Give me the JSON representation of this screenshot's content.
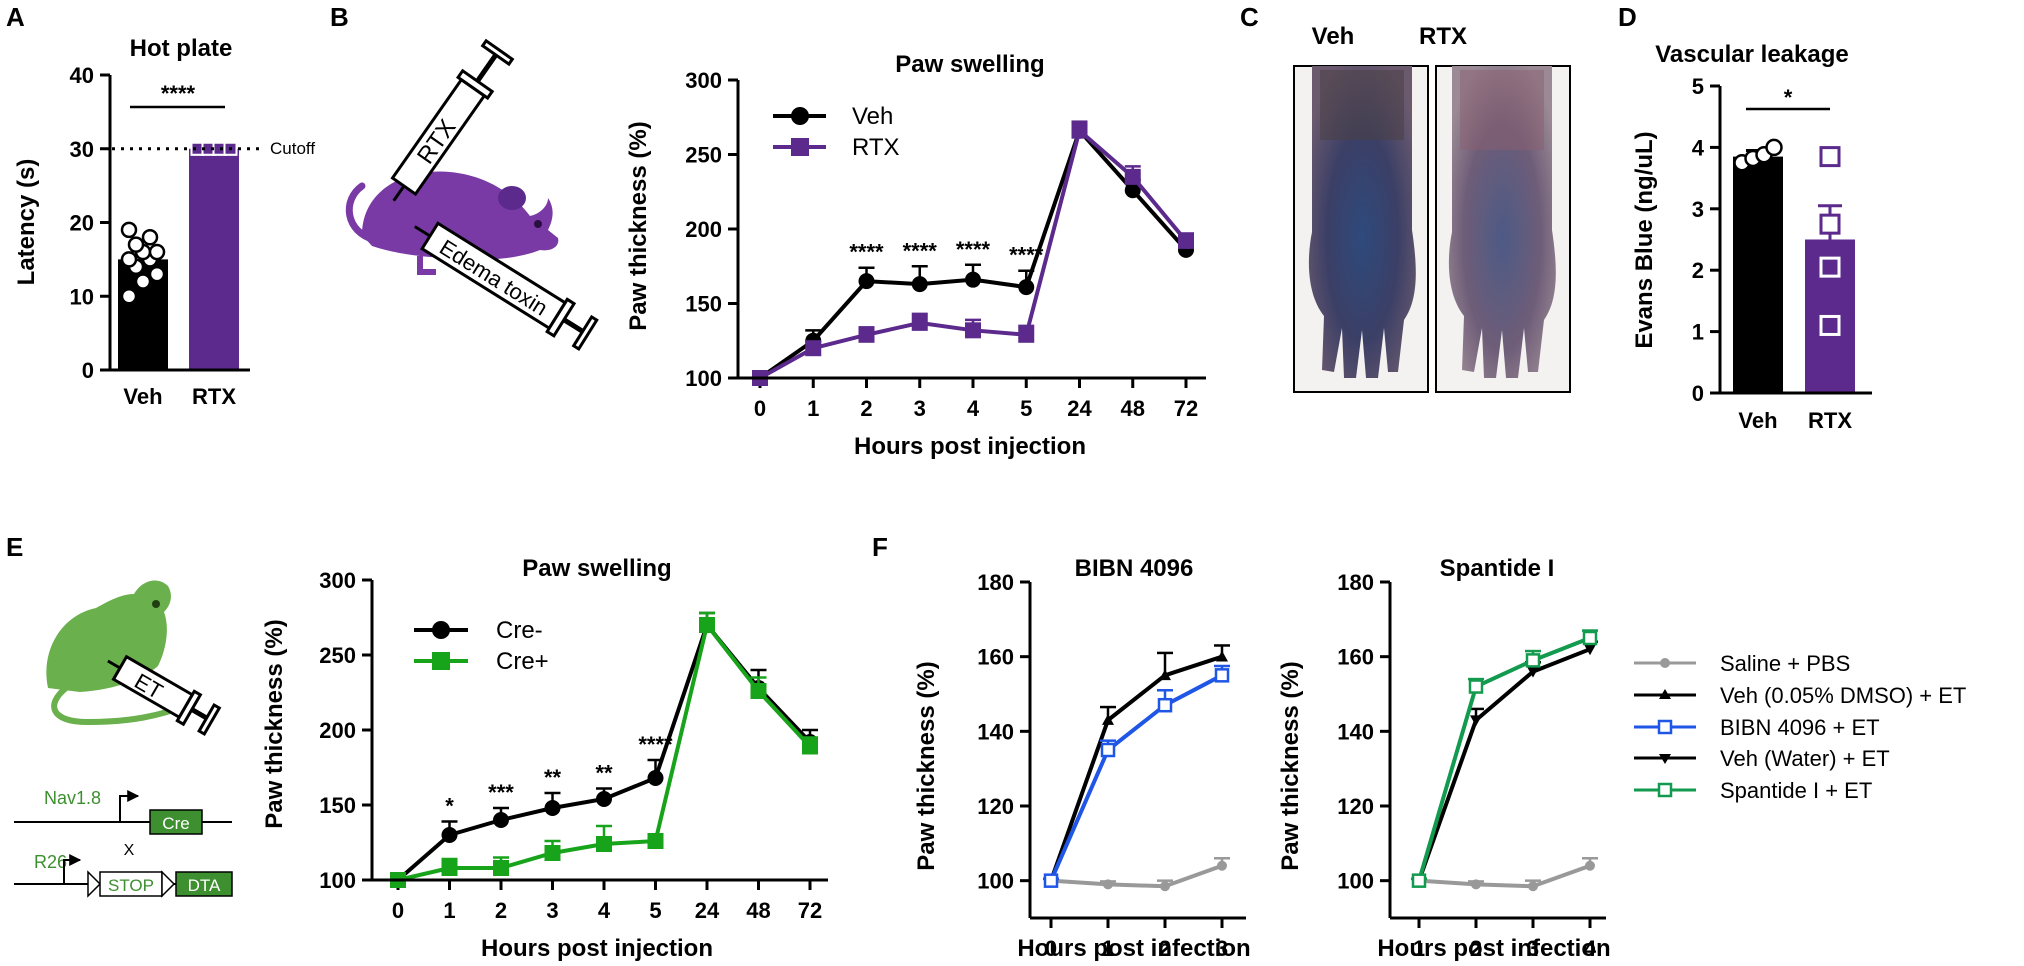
{
  "colors": {
    "veh": "#000000",
    "rtx": "#5b2a8c",
    "rtx_illustration": "#7a3aa6",
    "cre_plus": "#17a31a",
    "mouse_green": "#6ab04c",
    "saline": "#999999",
    "bibn": "#1f56e6",
    "spantide": "#129a4e",
    "gene_green": "#3d8f2f"
  },
  "panels": {
    "A": "A",
    "B": "B",
    "C": "C",
    "D": "D",
    "E": "E",
    "F": "F"
  },
  "illustration": {
    "rtx_syringe": "RTX",
    "edema_syringe": "Edema toxin",
    "et_syringe": "ET",
    "photo_veh": "Veh",
    "photo_rtx": "RTX",
    "nav": "Nav1.8",
    "cre": "Cre",
    "x": "X",
    "r26": "R26",
    "stop": "STOP",
    "dta": "DTA"
  },
  "chart_data": [
    {
      "id": "A",
      "type": "bar",
      "title": "Hot plate",
      "xlabel": "",
      "ylabel": "Latency (s)",
      "ylim": [
        0,
        40
      ],
      "yticks": [
        "0",
        "10",
        "20",
        "30",
        "40"
      ],
      "categories": [
        "Veh",
        "RTX"
      ],
      "values": [
        15,
        30
      ],
      "points": [
        [
          10,
          12,
          13,
          14,
          15,
          15,
          16,
          16,
          17,
          18,
          19
        ],
        [
          30,
          30,
          30,
          30,
          30,
          30,
          30,
          30
        ]
      ],
      "cutoff": 30,
      "cutoff_label": "Cutoff",
      "significance": "****"
    },
    {
      "id": "B",
      "type": "line",
      "title": "Paw swelling",
      "xlabel": "Hours post injection",
      "ylabel": "Paw thickness (%)",
      "ylim": [
        100,
        300
      ],
      "yticks": [
        "100",
        "150",
        "200",
        "250",
        "300"
      ],
      "x": [
        "0",
        "1",
        "2",
        "3",
        "4",
        "5",
        "24",
        "48",
        "72"
      ],
      "series": [
        {
          "name": "Veh",
          "values": [
            100,
            125,
            165,
            163,
            166,
            161,
            266,
            226,
            186
          ],
          "err": [
            2,
            7,
            9,
            12,
            10,
            11,
            6,
            7,
            5
          ]
        },
        {
          "name": "RTX",
          "values": [
            100,
            120,
            129,
            137,
            132,
            129,
            266,
            235,
            192
          ],
          "err": [
            2,
            4,
            5,
            6,
            7,
            6,
            6,
            7,
            5
          ]
        }
      ],
      "significance": [
        "",
        "",
        "****",
        "****",
        "****",
        "****",
        "",
        "",
        ""
      ]
    },
    {
      "id": "D",
      "type": "bar",
      "title": "Vascular leakage",
      "xlabel": "",
      "ylabel": "Evans Blue (ng/uL)",
      "ylim": [
        0,
        5
      ],
      "yticks": [
        "0",
        "1",
        "2",
        "3",
        "4",
        "5"
      ],
      "categories": [
        "Veh",
        "RTX"
      ],
      "values": [
        3.85,
        2.5
      ],
      "err": [
        0.1,
        0.55
      ],
      "points": [
        [
          3.75,
          3.82,
          3.88,
          4.0
        ],
        [
          3.85,
          2.75,
          2.05,
          1.1
        ]
      ],
      "significance": "*"
    },
    {
      "id": "E",
      "type": "line",
      "title": "Paw swelling",
      "xlabel": "Hours post injection",
      "ylabel": "Paw thickness (%)",
      "ylim": [
        100,
        300
      ],
      "yticks": [
        "100",
        "150",
        "200",
        "250",
        "300"
      ],
      "x": [
        "0",
        "1",
        "2",
        "3",
        "4",
        "5",
        "24",
        "48",
        "72"
      ],
      "series": [
        {
          "name": "Cre-",
          "values": [
            100,
            130,
            140,
            148,
            154,
            168,
            270,
            228,
            192
          ],
          "err": [
            2,
            9,
            8,
            10,
            7,
            12,
            8,
            12,
            8
          ]
        },
        {
          "name": "Cre+",
          "values": [
            100,
            108,
            108,
            118,
            124,
            126,
            270,
            226,
            189
          ],
          "err": [
            2,
            6,
            7,
            8,
            12,
            4,
            8,
            9,
            6
          ]
        }
      ],
      "significance": [
        "",
        "*",
        "***",
        "**",
        "**",
        "****",
        "",
        "",
        ""
      ]
    },
    {
      "id": "F1",
      "type": "line",
      "title": "BIBN 4096",
      "xlabel": "Hours post infection",
      "ylabel": "Paw thickness (%)",
      "ylim": [
        90,
        180
      ],
      "yticks": [
        "100",
        "120",
        "140",
        "160",
        "180"
      ],
      "x": [
        "0",
        "1",
        "2",
        "3"
      ],
      "series": [
        {
          "name": "Saline + PBS",
          "values": [
            100,
            99,
            98.5,
            104
          ],
          "err": [
            0.5,
            0.8,
            1.5,
            2
          ]
        },
        {
          "name": "Veh (0.05% DMSO) + ET",
          "values": [
            100,
            143,
            155,
            160
          ],
          "err": [
            0.5,
            3.5,
            6,
            3
          ]
        },
        {
          "name": "BIBN 4096 + ET",
          "values": [
            100,
            135,
            147,
            155
          ],
          "err": [
            0.5,
            2.5,
            4,
            2.5
          ]
        }
      ]
    },
    {
      "id": "F2",
      "type": "line",
      "title": "Spantide I",
      "xlabel": "Hours post infection",
      "ylabel": "Paw thickness (%)",
      "ylim": [
        90,
        180
      ],
      "yticks": [
        "100",
        "120",
        "140",
        "160",
        "180"
      ],
      "x": [
        "1",
        "2",
        "3",
        "4"
      ],
      "series": [
        {
          "name": "Saline + PBS",
          "values": [
            100,
            99,
            98.5,
            104
          ],
          "err": [
            0.5,
            0.8,
            1.5,
            2
          ]
        },
        {
          "name": "Veh (Water) + ET",
          "values": [
            100,
            143,
            156,
            162
          ],
          "err": [
            0.5,
            3,
            2.5,
            2
          ]
        },
        {
          "name": "Spantide I + ET",
          "values": [
            100,
            152,
            159,
            165
          ],
          "err": [
            0.5,
            2,
            2.5,
            2
          ]
        }
      ]
    }
  ],
  "legend_F": [
    "Saline + PBS",
    "Veh (0.05% DMSO) + ET",
    "BIBN 4096 + ET",
    "Veh (Water) + ET",
    "Spantide I + ET"
  ]
}
